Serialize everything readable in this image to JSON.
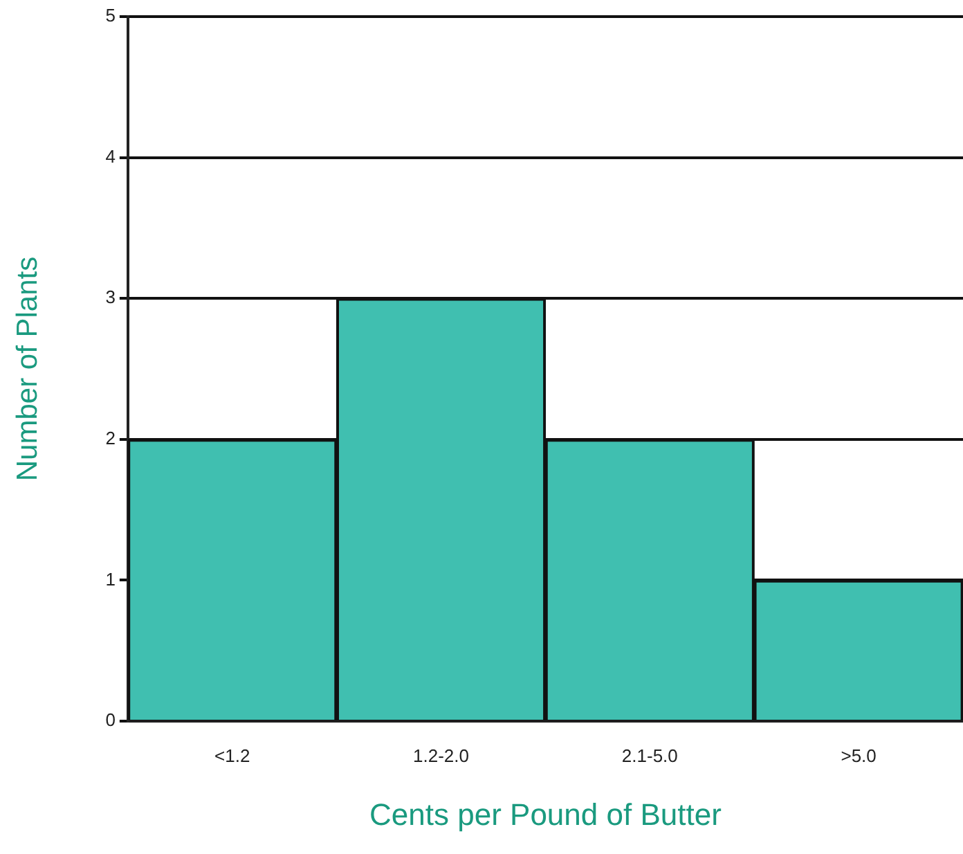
{
  "chart_data": {
    "type": "bar",
    "xlabel": "Cents per Pound of Butter",
    "ylabel": "Number of Plants",
    "categories": [
      "<1.2",
      "1.2-2.0",
      "2.1-5.0",
      ">5.0"
    ],
    "values": [
      2,
      3,
      2,
      1
    ],
    "color": "#40bfb0",
    "ylim": [
      0,
      5
    ],
    "yticks": [
      0,
      1,
      2,
      3,
      4,
      5
    ],
    "grid": "y",
    "legend": false
  }
}
